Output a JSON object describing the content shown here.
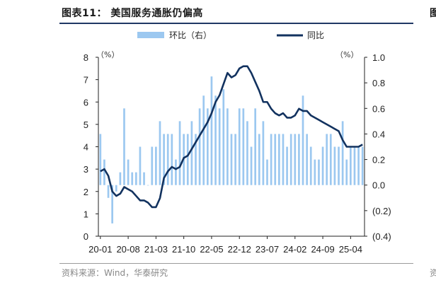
{
  "header": {
    "title": "图表11：  美国服务通胀仍偏高",
    "corner_mark": "图"
  },
  "footer": {
    "source": "资料来源：Wind，华泰研究",
    "corner_mark": "资"
  },
  "colors": {
    "bar": "#9cc8f0",
    "line": "#12325f",
    "axis": "#222222"
  },
  "chart_data": {
    "type": "bar+line",
    "title": "美国服务通胀仍偏高",
    "legend": [
      {
        "name": "环比（右）",
        "kind": "bar"
      },
      {
        "name": "同比",
        "kind": "line"
      }
    ],
    "left_axis": {
      "unit": "（%）",
      "min": 0,
      "max": 8,
      "ticks": [
        "0",
        "1",
        "2",
        "3",
        "4",
        "5",
        "6",
        "7",
        "8"
      ],
      "tick_values": [
        0,
        1,
        2,
        3,
        4,
        5,
        6,
        7,
        8
      ]
    },
    "right_axis": {
      "unit": "（%）",
      "min": -0.4,
      "max": 1.0,
      "ticks": [
        "(0.4)",
        "(0.2)",
        "0.0",
        "0.2",
        "0.4",
        "0.6",
        "0.8",
        "1.0"
      ],
      "tick_values": [
        -0.4,
        -0.2,
        0.0,
        0.2,
        0.4,
        0.6,
        0.8,
        1.0
      ]
    },
    "x_ticks": [
      {
        "label": "20-01",
        "index": 0
      },
      {
        "label": "20-08",
        "index": 7
      },
      {
        "label": "21-03",
        "index": 14
      },
      {
        "label": "21-10",
        "index": 21
      },
      {
        "label": "22-05",
        "index": 28
      },
      {
        "label": "22-12",
        "index": 35
      },
      {
        "label": "23-07",
        "index": 42
      },
      {
        "label": "24-02",
        "index": 49
      },
      {
        "label": "24-09",
        "index": 56
      },
      {
        "label": "25-04",
        "index": 63
      }
    ],
    "months_count": 67,
    "series": [
      {
        "name": "环比（右）",
        "axis": "right",
        "values": [
          0.4,
          0.2,
          -0.1,
          -0.3,
          -0.05,
          0.1,
          0.6,
          0.2,
          0.1,
          0.1,
          0.3,
          0.1,
          0.0,
          0.3,
          0.3,
          0.5,
          0.4,
          0.4,
          0.4,
          0.2,
          0.5,
          0.4,
          0.4,
          0.5,
          0.4,
          0.6,
          0.7,
          0.6,
          0.85,
          0.7,
          0.6,
          0.75,
          0.6,
          0.4,
          0.4,
          0.6,
          0.6,
          0.5,
          0.3,
          0.6,
          0.4,
          0.5,
          0.2,
          0.4,
          0.4,
          0.4,
          0.4,
          0.3,
          0.4,
          0.4,
          0.4,
          0.7,
          0.4,
          0.3,
          0.2,
          0.2,
          0.3,
          0.4,
          0.4,
          0.3,
          0.3,
          0.5,
          0.2,
          0.3,
          0.3,
          0.3,
          0.3
        ]
      },
      {
        "name": "同比",
        "axis": "left",
        "values": [
          2.9,
          3.0,
          2.7,
          2.0,
          1.8,
          1.9,
          2.2,
          2.1,
          2.0,
          1.8,
          1.6,
          1.6,
          1.5,
          1.3,
          1.3,
          1.7,
          2.6,
          2.9,
          3.1,
          3.0,
          3.1,
          3.5,
          3.6,
          3.9,
          4.2,
          4.5,
          4.8,
          5.1,
          5.5,
          6.0,
          6.3,
          6.8,
          7.3,
          7.1,
          7.2,
          7.5,
          7.6,
          7.6,
          7.3,
          6.9,
          6.5,
          6.0,
          6.0,
          5.7,
          5.5,
          5.4,
          5.5,
          5.3,
          5.3,
          5.4,
          5.7,
          5.6,
          5.6,
          5.4,
          5.3,
          5.2,
          5.1,
          5.0,
          4.9,
          4.8,
          4.7,
          4.3,
          4.0,
          4.0,
          4.0,
          4.0,
          4.1
        ]
      }
    ]
  }
}
